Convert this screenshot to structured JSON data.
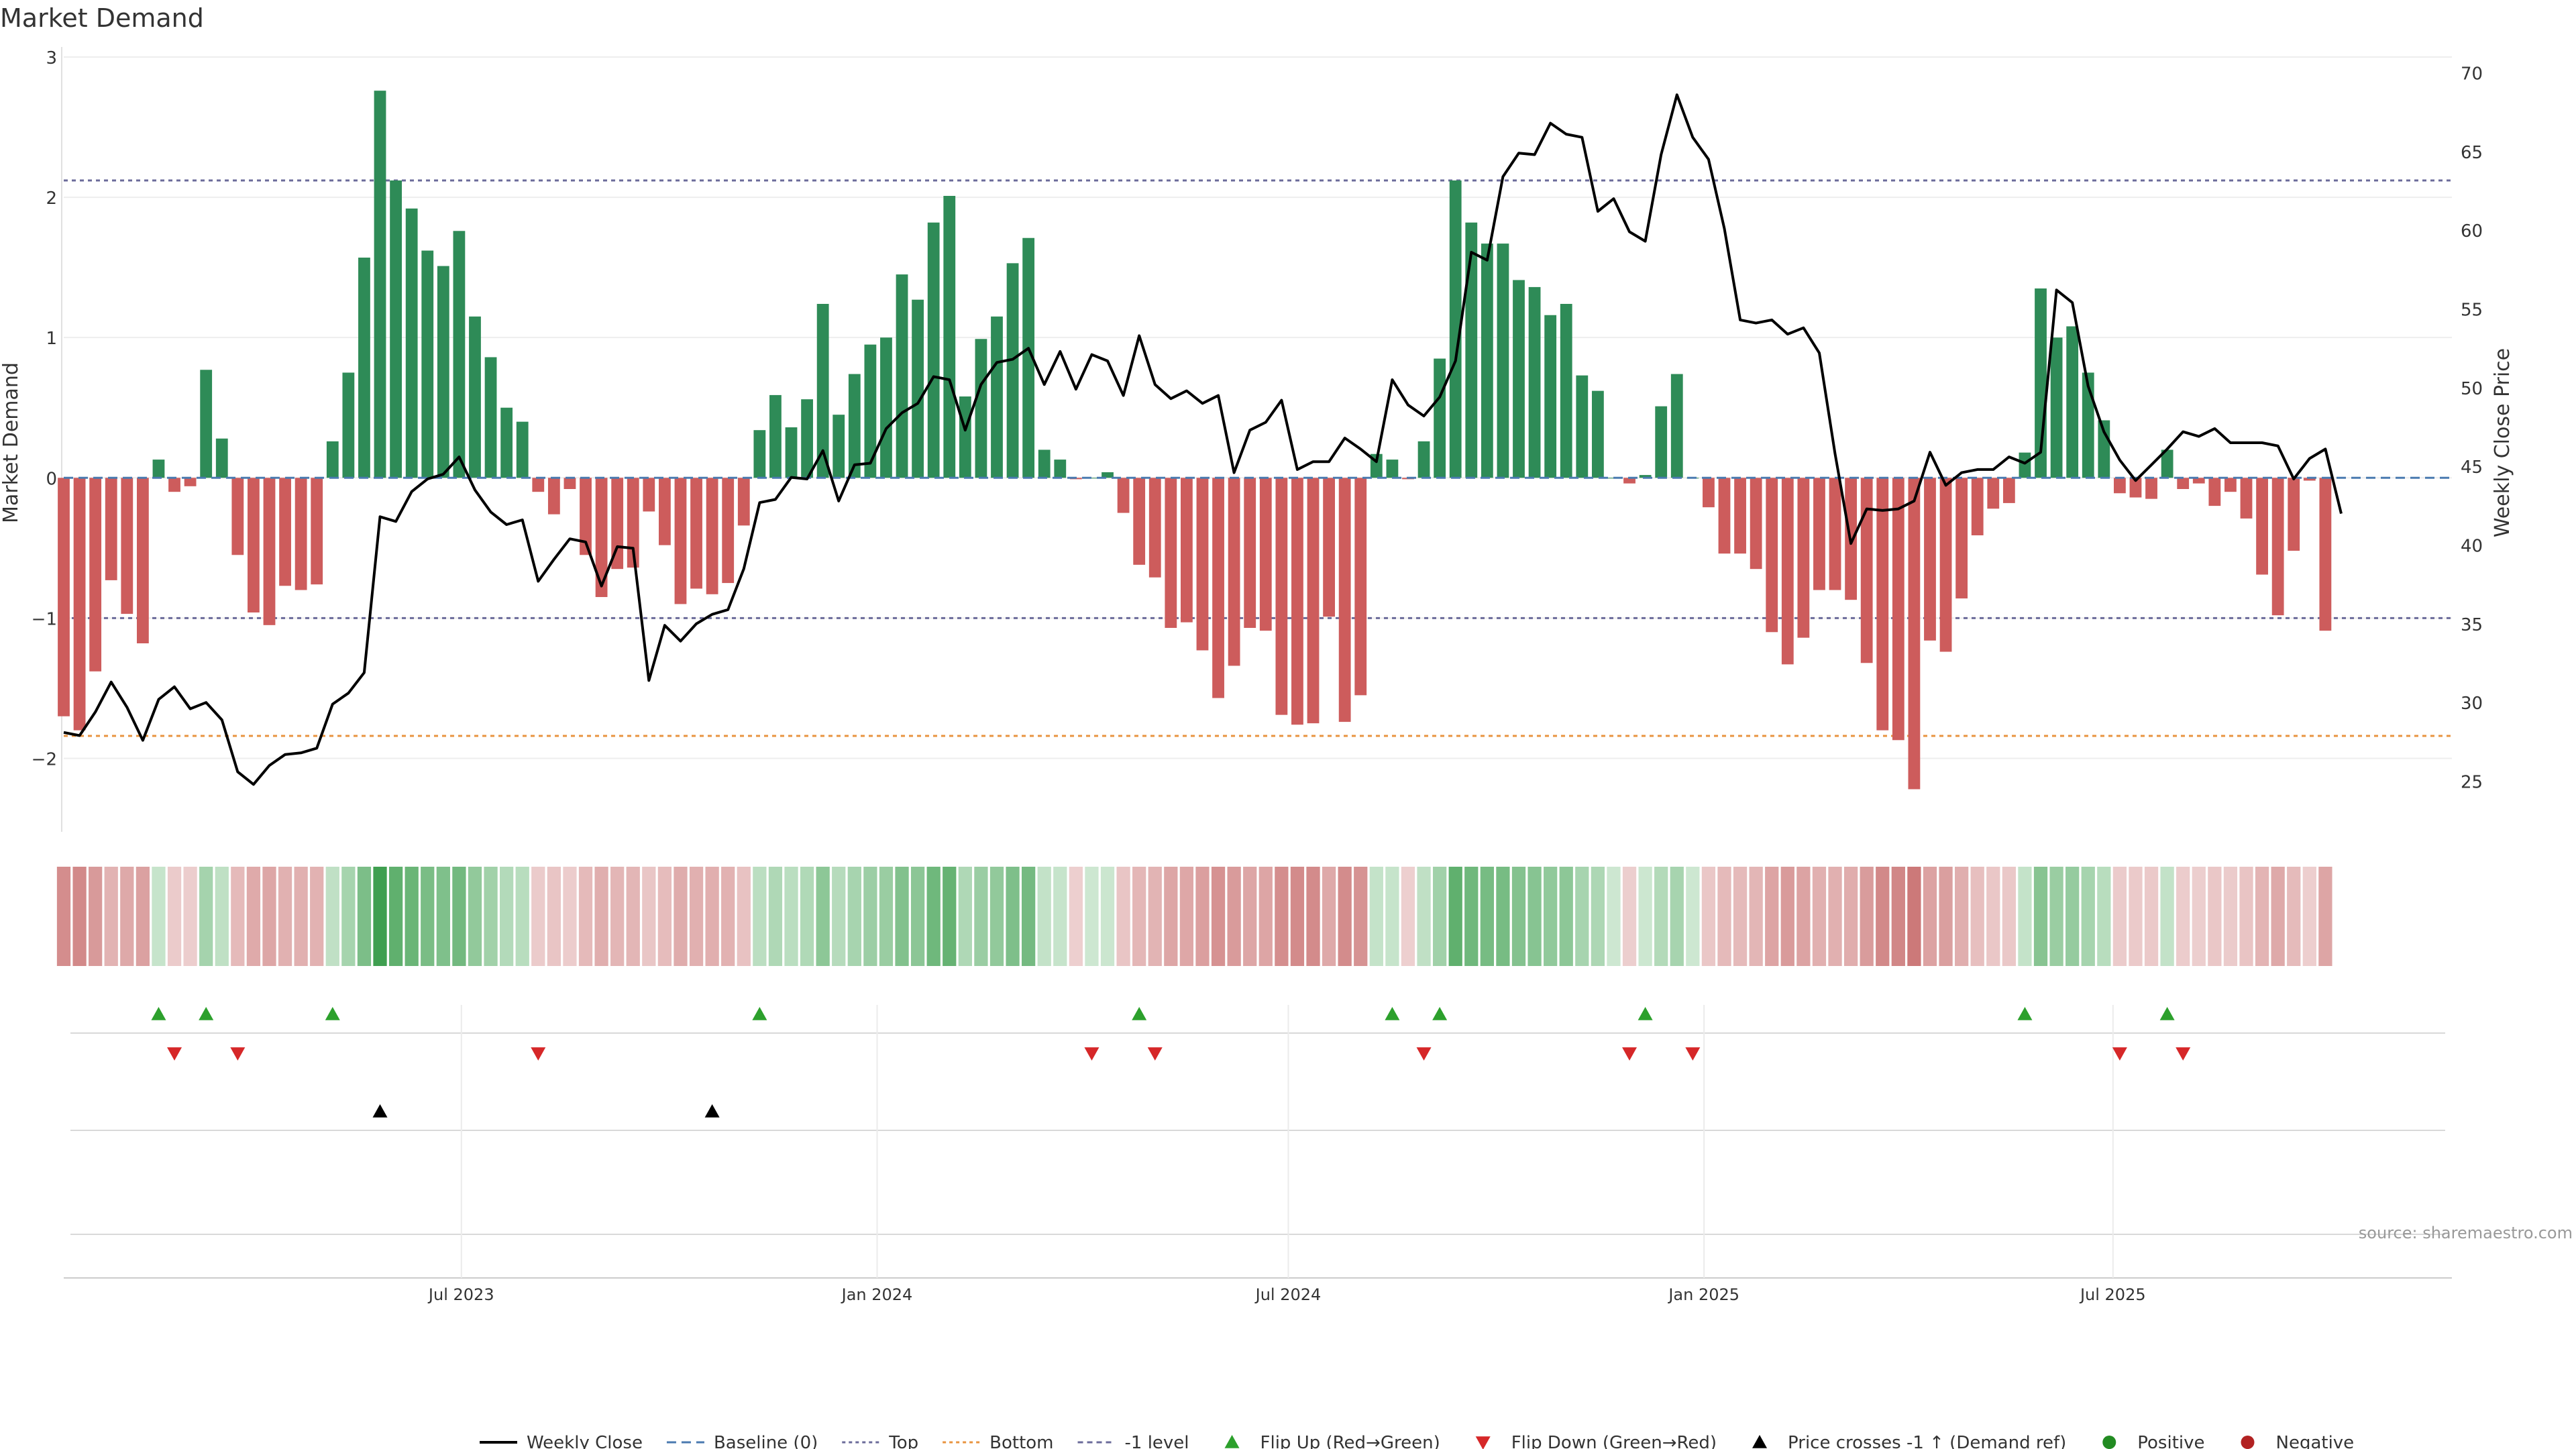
{
  "chart_data": {
    "type": "bar",
    "title": "Market Demand",
    "ylabel": "Market Demand",
    "ylabel_right": "Weekly Close Price",
    "source": "source: sharemaestro.com",
    "ylim": [
      -2.5,
      3
    ],
    "ylim_right": [
      22,
      71
    ],
    "yticks": [
      3,
      2,
      1,
      0,
      -1,
      -2
    ],
    "ytick_labels": [
      "3",
      "2",
      "1",
      "0",
      "−1",
      "−2"
    ],
    "yticks_right": [
      70,
      65,
      60,
      55,
      50,
      45,
      40,
      35,
      30,
      25
    ],
    "ytick_labels_right": [
      "70",
      "65",
      "60",
      "55",
      "50",
      "45",
      "40",
      "35",
      "30",
      "25"
    ],
    "x_range": [
      "2023-01-06",
      "2025-11-28"
    ],
    "xticks": [
      {
        "date": "2023-07-01",
        "label": "Jul 2023"
      },
      {
        "date": "2024-01-01",
        "label": "Jan 2024"
      },
      {
        "date": "2024-07-01",
        "label": "Jul 2024"
      },
      {
        "date": "2025-01-01",
        "label": "Jan 2025"
      },
      {
        "date": "2025-07-01",
        "label": "Jul 2025"
      }
    ],
    "grid": true,
    "legend_position": "bottom-center",
    "levels": {
      "top": 2.12,
      "bottom": -1.84,
      "minus_one": -1.0,
      "baseline": 0
    },
    "colors": {
      "positive_bar": "#2e8b57",
      "negative_bar": "#cd5c5c",
      "price": "#000000",
      "top": "#6b6b9a",
      "bottom": "#e89440",
      "minus_one": "#6b6b9a",
      "flip_up": "#2ca02c",
      "flip_down": "#d62728",
      "cross": "#000000",
      "positive_dot": "#228b22",
      "negative_dot": "#b22222"
    },
    "start_date": "2023-01-06",
    "week_step_days": 7,
    "demand": [
      -1.7,
      -1.8,
      -1.38,
      -0.73,
      -0.97,
      -1.18,
      0.13,
      -0.1,
      -0.06,
      0.77,
      0.28,
      -0.55,
      -0.96,
      -1.05,
      -0.77,
      -0.8,
      -0.76,
      0.26,
      0.75,
      1.57,
      2.76,
      2.12,
      1.92,
      1.62,
      1.51,
      1.76,
      1.15,
      0.86,
      0.5,
      0.4,
      -0.1,
      -0.26,
      -0.08,
      -0.55,
      -0.85,
      -0.65,
      -0.64,
      -0.24,
      -0.48,
      -0.9,
      -0.79,
      -0.83,
      -0.75,
      -0.34,
      0.34,
      0.59,
      0.36,
      0.56,
      1.24,
      0.45,
      0.74,
      0.95,
      1.0,
      1.45,
      1.27,
      1.82,
      2.01,
      0.58,
      0.99,
      1.15,
      1.53,
      1.71,
      0.2,
      0.13,
      -0.01,
      0.0,
      0.04,
      -0.25,
      -0.62,
      -0.71,
      -1.07,
      -1.03,
      -1.23,
      -1.57,
      -1.34,
      -1.07,
      -1.09,
      -1.69,
      -1.76,
      -1.75,
      -0.99,
      -1.74,
      -1.55,
      0.17,
      0.13,
      -0.01,
      0.26,
      0.85,
      2.12,
      1.82,
      1.67,
      1.67,
      1.41,
      1.36,
      1.16,
      1.24,
      0.73,
      0.62,
      0.0,
      -0.04,
      0.02,
      0.51,
      0.74,
      0.0,
      -0.21,
      -0.54,
      -0.54,
      -0.65,
      -1.1,
      -1.33,
      -1.14,
      -0.8,
      -0.8,
      -0.87,
      -1.32,
      -1.8,
      -1.87,
      -2.22,
      -1.16,
      -1.24,
      -0.86,
      -0.41,
      -0.22,
      -0.18,
      0.18,
      1.35,
      1.0,
      1.08,
      0.75,
      0.41,
      -0.11,
      -0.14,
      -0.15,
      0.2,
      -0.08,
      -0.04,
      -0.2,
      -0.1,
      -0.29,
      -0.69,
      -0.98,
      -0.52,
      -0.02,
      -1.09
    ],
    "price": [
      28.1,
      27.9,
      29.4,
      31.3,
      29.7,
      27.6,
      30.2,
      31.0,
      29.6,
      30.0,
      28.9,
      25.6,
      24.8,
      26.0,
      26.7,
      26.8,
      27.1,
      29.9,
      30.6,
      31.9,
      41.8,
      41.5,
      43.4,
      44.2,
      44.5,
      45.6,
      43.5,
      42.1,
      41.3,
      41.6,
      37.7,
      39.1,
      40.4,
      40.2,
      37.4,
      39.9,
      39.8,
      31.4,
      34.9,
      33.9,
      35.0,
      35.6,
      35.9,
      38.5,
      42.7,
      42.9,
      44.3,
      44.2,
      46.0,
      42.8,
      45.1,
      45.2,
      47.4,
      48.4,
      49.0,
      50.7,
      50.5,
      47.3,
      50.2,
      51.6,
      51.8,
      52.5,
      50.2,
      52.3,
      49.9,
      52.1,
      51.7,
      49.5,
      53.3,
      50.2,
      49.3,
      49.8,
      49.0,
      49.5,
      44.6,
      47.3,
      47.8,
      49.2,
      44.8,
      45.3,
      45.3,
      46.8,
      46.1,
      45.3,
      50.5,
      48.9,
      48.2,
      49.4,
      51.7,
      58.6,
      58.1,
      63.4,
      64.9,
      64.8,
      66.8,
      66.1,
      65.9,
      61.2,
      62.0,
      59.9,
      59.3,
      64.8,
      68.6,
      65.9,
      64.5,
      60.1,
      54.3,
      54.1,
      54.3,
      53.4,
      53.8,
      52.2,
      45.8,
      40.1,
      42.3,
      42.2,
      42.3,
      42.8,
      45.9,
      43.8,
      44.6,
      44.8,
      44.8,
      45.6,
      45.2,
      45.9,
      56.2,
      55.4,
      50.1,
      47.2,
      45.4,
      44.1,
      45.1,
      46.1,
      47.2,
      46.9,
      47.4,
      46.5,
      46.5,
      46.5,
      46.3,
      44.2,
      45.5,
      46.1,
      42.0
    ],
    "flip_up_weeks": [
      6,
      9,
      17,
      44,
      68,
      84,
      87,
      100,
      124,
      133
    ],
    "flip_down_weeks": [
      7,
      11,
      30,
      65,
      69,
      86,
      99,
      103,
      130,
      134
    ],
    "price_cross_weeks": [
      20,
      41
    ],
    "legend": [
      {
        "label": "Weekly Close",
        "kind": "line"
      },
      {
        "label": "Baseline (0)",
        "kind": "dash"
      },
      {
        "label": "Top",
        "kind": "dot"
      },
      {
        "label": "Bottom",
        "kind": "dot-orange"
      },
      {
        "label": "-1 level",
        "kind": "dash-gray"
      },
      {
        "label": "Flip Up (Red→Green)",
        "kind": "tri-up"
      },
      {
        "label": "Flip Down (Green→Red)",
        "kind": "tri-down"
      },
      {
        "label": "Price crosses -1 ↑ (Demand ref)",
        "kind": "tri-up-black"
      },
      {
        "label": "Positive",
        "kind": "dot-green"
      },
      {
        "label": "Negative",
        "kind": "dot-red"
      }
    ]
  }
}
